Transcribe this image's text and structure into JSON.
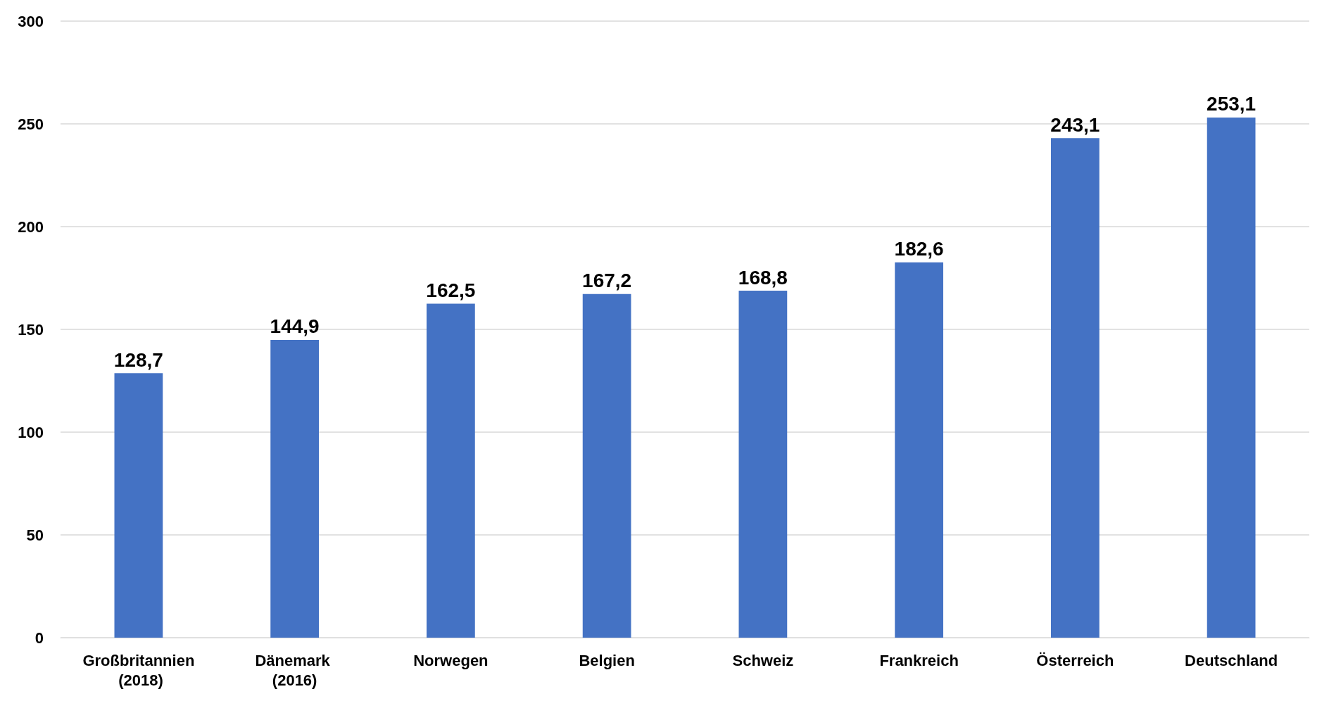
{
  "chart_data": {
    "type": "bar",
    "categories": [
      "Großbritannien (2018)",
      "Dänemark (2016)",
      "Norwegen",
      "Belgien",
      "Schweiz",
      "Frankreich",
      "Österreich",
      "Deutschland"
    ],
    "values": [
      128.7,
      144.9,
      162.5,
      167.2,
      168.8,
      182.6,
      243.1,
      253.1
    ],
    "value_labels": [
      "128,7",
      "144,9",
      "162,5",
      "167,2",
      "168,8",
      "182,6",
      "243,1",
      "253,1"
    ],
    "color": "#4472c4",
    "ylim": [
      0,
      300
    ],
    "yticks": [
      0,
      50,
      100,
      150,
      200,
      250,
      300
    ],
    "grid": "y"
  }
}
